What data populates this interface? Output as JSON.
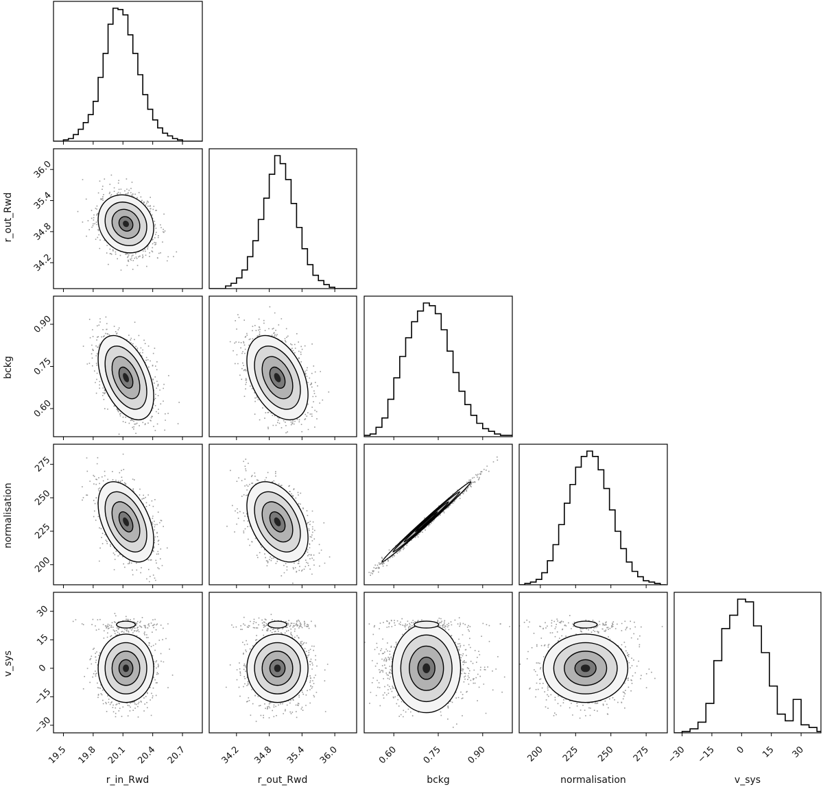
{
  "chart_data": {
    "type": "corner",
    "parameters": [
      {
        "name": "r_in_Rwd",
        "range": [
          19.4,
          20.9
        ],
        "ticks": [
          19.5,
          19.8,
          20.1,
          20.4,
          20.7
        ],
        "tick_labels": [
          "19.5",
          "19.8",
          "20.1",
          "20.4",
          "20.7"
        ],
        "mean": 20.13,
        "sd": 0.14
      },
      {
        "name": "r_out_Rwd",
        "range": [
          33.7,
          36.4
        ],
        "ticks": [
          34.2,
          34.8,
          35.4,
          36.0
        ],
        "tick_labels": [
          "34.2",
          "34.8",
          "35.4",
          "36.0"
        ],
        "mean": 34.95,
        "sd": 0.28
      },
      {
        "name": "bckg",
        "range": [
          0.5,
          1.0
        ],
        "ticks": [
          0.6,
          0.75,
          0.9
        ],
        "tick_labels": [
          "0.60",
          "0.75",
          "0.90"
        ],
        "mean": 0.71,
        "sd": 0.075
      },
      {
        "name": "normalisation",
        "range": [
          185,
          290
        ],
        "ticks": [
          200,
          225,
          250,
          275
        ],
        "tick_labels": [
          "200",
          "225",
          "250",
          "275"
        ],
        "mean": 232,
        "sd": 15
      },
      {
        "name": "v_sys",
        "range": [
          -34,
          40
        ],
        "ticks": [
          -30,
          -15,
          0,
          15,
          30
        ],
        "tick_labels": [
          "−30",
          "−15",
          "0",
          "15",
          "30"
        ],
        "mean": 0,
        "sd": 9
      }
    ],
    "histograms": [
      {
        "param": "r_in_Rwd",
        "bins": [
          19.4,
          19.45,
          19.5,
          19.55,
          19.6,
          19.65,
          19.7,
          19.75,
          19.8,
          19.85,
          19.9,
          19.95,
          20.0,
          20.05,
          20.1,
          20.15,
          20.2,
          20.25,
          20.3,
          20.35,
          20.4,
          20.45,
          20.5,
          20.55,
          20.6,
          20.65,
          20.7,
          20.75,
          20.8,
          20.85,
          20.9
        ],
        "counts": [
          0,
          0,
          1,
          2,
          5,
          9,
          14,
          20,
          30,
          48,
          66,
          88,
          100,
          99,
          95,
          80,
          66,
          50,
          35,
          24,
          16,
          10,
          6,
          4,
          2,
          1,
          0,
          0,
          0,
          0
        ]
      },
      {
        "param": "r_out_Rwd",
        "bins": [
          33.7,
          33.8,
          33.9,
          34.0,
          34.1,
          34.2,
          34.3,
          34.4,
          34.5,
          34.6,
          34.7,
          34.8,
          34.9,
          35.0,
          35.1,
          35.2,
          35.3,
          35.4,
          35.5,
          35.6,
          35.7,
          35.8,
          35.9,
          36.0,
          36.1,
          36.2,
          36.3,
          36.4
        ],
        "counts": [
          0,
          0,
          0,
          2,
          4,
          8,
          14,
          24,
          36,
          52,
          68,
          86,
          100,
          94,
          82,
          64,
          46,
          30,
          18,
          10,
          6,
          3,
          1,
          0,
          0,
          0,
          0
        ]
      },
      {
        "param": "bckg",
        "bins": [
          0.5,
          0.52,
          0.54,
          0.56,
          0.58,
          0.6,
          0.62,
          0.64,
          0.66,
          0.68,
          0.7,
          0.72,
          0.74,
          0.76,
          0.78,
          0.8,
          0.82,
          0.84,
          0.86,
          0.88,
          0.9,
          0.92,
          0.94,
          0.96,
          0.98,
          1.0
        ],
        "counts": [
          1,
          2,
          7,
          14,
          28,
          44,
          60,
          74,
          86,
          94,
          100,
          98,
          92,
          80,
          64,
          48,
          34,
          24,
          16,
          10,
          6,
          4,
          2,
          1,
          1
        ]
      },
      {
        "param": "normalisation",
        "bins": [
          185,
          189,
          193,
          197,
          201,
          205,
          209,
          213,
          217,
          221,
          225,
          229,
          233,
          237,
          241,
          245,
          249,
          253,
          257,
          261,
          265,
          269,
          273,
          277,
          281,
          285,
          289
        ],
        "counts": [
          0,
          1,
          2,
          4,
          9,
          18,
          30,
          45,
          61,
          75,
          88,
          96,
          100,
          96,
          86,
          72,
          56,
          40,
          27,
          17,
          10,
          6,
          3,
          2,
          1,
          0
        ]
      },
      {
        "param": "v_sys",
        "bins": [
          -34,
          -30,
          -26,
          -22,
          -18,
          -14,
          -10,
          -6,
          -2,
          2,
          6,
          10,
          14,
          18,
          22,
          26,
          30,
          34,
          38,
          42
        ],
        "counts": [
          0,
          1,
          3,
          8,
          22,
          54,
          78,
          88,
          100,
          98,
          80,
          60,
          35,
          14,
          9,
          25,
          6,
          4,
          1
        ]
      }
    ],
    "pairs": [
      {
        "x": "r_in_Rwd",
        "y": "r_out_Rwd",
        "corr": -0.15
      },
      {
        "x": "r_in_Rwd",
        "y": "bckg",
        "corr": -0.45
      },
      {
        "x": "r_out_Rwd",
        "y": "bckg",
        "corr": -0.4
      },
      {
        "x": "r_in_Rwd",
        "y": "normalisation",
        "corr": -0.45
      },
      {
        "x": "r_out_Rwd",
        "y": "normalisation",
        "corr": -0.4
      },
      {
        "x": "bckg",
        "y": "normalisation",
        "corr": 0.995
      },
      {
        "x": "r_in_Rwd",
        "y": "v_sys",
        "corr": 0
      },
      {
        "x": "r_out_Rwd",
        "y": "v_sys",
        "corr": 0
      },
      {
        "x": "bckg",
        "y": "v_sys",
        "corr": 0
      },
      {
        "x": "normalisation",
        "y": "v_sys",
        "corr": 0
      }
    ],
    "secondary_mode": {
      "param": "v_sys",
      "center": 23,
      "sd": 1.5
    },
    "grid": false,
    "legend": "none"
  },
  "labels": {
    "x": [
      "r_in_Rwd",
      "r_out_Rwd",
      "bckg",
      "normalisation",
      "v_sys"
    ],
    "y": [
      "r_out_Rwd",
      "bckg",
      "normalisation",
      "v_sys"
    ]
  }
}
